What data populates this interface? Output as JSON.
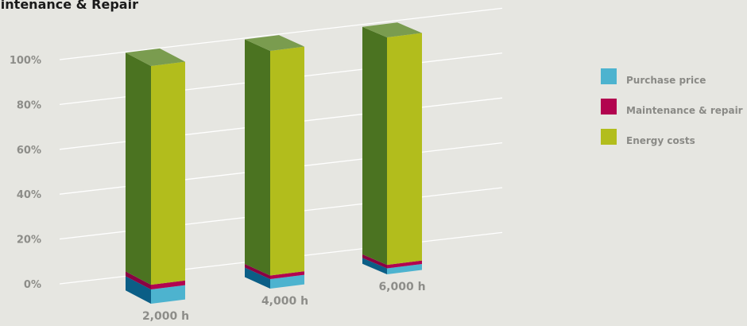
{
  "chart_data": {
    "type": "bar",
    "stacked": true,
    "three_d": true,
    "title": "aintenance & Repair",
    "categories": [
      "2,000 h",
      "4,000 h",
      "6,000 h"
    ],
    "yticks": [
      "0%",
      "20%",
      "40%",
      "60%",
      "80%",
      "100%"
    ],
    "ylim": [
      0,
      100
    ],
    "grid": true,
    "legend_position": "right",
    "series": [
      {
        "name": "Purchase price",
        "values": [
          6,
          4,
          2.5
        ],
        "color": "#4db3cf",
        "dark": "#0b5e86"
      },
      {
        "name": "Maintenance & repair",
        "values": [
          2,
          1.5,
          1.5
        ],
        "color": "#b2044f",
        "dark": "#8a0342"
      },
      {
        "name": "Energy costs",
        "values": [
          92,
          94.5,
          96
        ],
        "color": "#b2bd1c",
        "dark": "#4b7321"
      }
    ]
  }
}
